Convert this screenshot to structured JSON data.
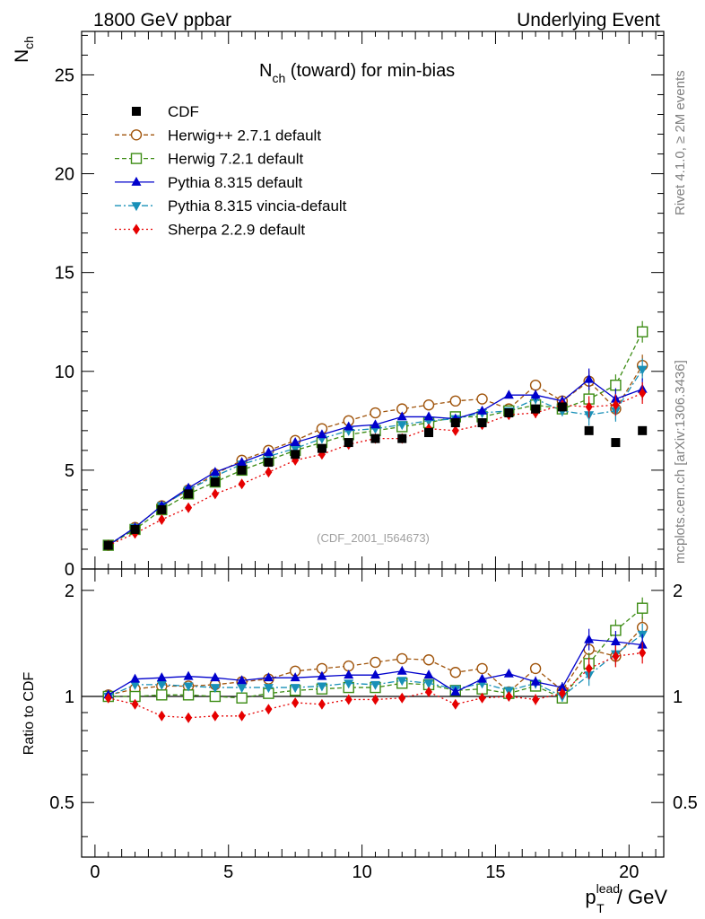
{
  "header": {
    "left": "1800 GeV ppbar",
    "right": "Underlying Event"
  },
  "side": {
    "rivet": "Rivet 4.1.0, ≥ 2M events",
    "mcplots": "mcplots.cern.ch [arXiv:1306.3436]"
  },
  "colors": {
    "CDF": "#000000",
    "herwigpp": "#a0540b",
    "herwig7": "#3c8c14",
    "pythia": "#0000cc",
    "vincia": "#1890b8",
    "sherpa": "#e60000"
  },
  "chart_data": [
    {
      "type": "scatter",
      "title_main": "N",
      "title_sub": "ch",
      "title_rest": " (toward) for min-bias",
      "ylabel_main": "N",
      "ylabel_sub": "ch",
      "xlim": [
        -0.5,
        21.3
      ],
      "ylim": [
        0,
        27.2
      ],
      "yticks": [
        0,
        5,
        10,
        15,
        20,
        25
      ],
      "ytick_labels": [
        "0",
        "5",
        "10",
        "15",
        "20",
        "25"
      ],
      "watermark": "(CDF_2001_I564673)",
      "x": [
        0.5,
        1.5,
        2.5,
        3.5,
        4.5,
        5.5,
        6.5,
        7.5,
        8.5,
        9.5,
        10.5,
        11.5,
        12.5,
        13.5,
        14.5,
        15.5,
        16.5,
        17.5,
        18.5,
        19.5,
        20.5
      ],
      "series": [
        {
          "name": "CDF",
          "key": "CDF",
          "values": [
            1.2,
            2.0,
            3.0,
            3.8,
            4.4,
            5.0,
            5.4,
            5.8,
            6.1,
            6.4,
            6.6,
            6.6,
            6.9,
            7.4,
            7.4,
            7.9,
            8.1,
            8.2,
            7.0,
            6.4,
            7.0
          ]
        },
        {
          "name": "Herwig++ 2.7.1 default",
          "key": "herwigpp",
          "values": [
            1.2,
            2.1,
            3.2,
            4.0,
            4.8,
            5.5,
            6.0,
            6.5,
            7.1,
            7.5,
            7.9,
            8.1,
            8.3,
            8.5,
            8.6,
            8.1,
            9.3,
            8.5,
            9.5,
            8.1,
            10.3
          ]
        },
        {
          "name": "Herwig 7.2.1 default",
          "key": "herwig7",
          "values": [
            1.2,
            2.0,
            3.0,
            3.8,
            4.4,
            5.0,
            5.5,
            6.0,
            6.4,
            6.8,
            7.0,
            7.2,
            7.4,
            7.7,
            7.7,
            8.0,
            8.3,
            8.1,
            8.6,
            9.3,
            12.0
          ]
        },
        {
          "name": "Pythia 8.315 default",
          "key": "pythia",
          "values": [
            1.2,
            2.1,
            3.2,
            4.1,
            4.9,
            5.4,
            5.9,
            6.4,
            6.8,
            7.2,
            7.3,
            7.7,
            7.7,
            7.6,
            8.0,
            8.8,
            8.8,
            8.5,
            9.6,
            8.6,
            9.1
          ]
        },
        {
          "name": "Pythia 8.315 vincia-default",
          "key": "vincia",
          "values": [
            1.2,
            2.1,
            3.2,
            4.0,
            4.7,
            5.3,
            5.7,
            6.1,
            6.6,
            7.0,
            7.1,
            7.3,
            7.5,
            7.6,
            7.9,
            8.0,
            8.6,
            8.0,
            7.8,
            8.0,
            10.1
          ]
        },
        {
          "name": "Sherpa 2.2.9 default",
          "key": "sherpa",
          "values": [
            1.2,
            1.8,
            2.5,
            3.1,
            3.8,
            4.3,
            4.9,
            5.5,
            5.8,
            6.3,
            6.6,
            6.6,
            7.1,
            7.0,
            7.3,
            7.8,
            7.9,
            8.3,
            8.2,
            8.3,
            8.9
          ]
        }
      ],
      "legend_position": "top-left"
    },
    {
      "type": "scatter",
      "ylabel": "Ratio to CDF",
      "xlabel_main": "p",
      "xlabel_sub": "T",
      "xlabel_sup": "lead",
      "xlabel_rest": " / GeV",
      "xlim": [
        -0.5,
        21.3
      ],
      "ylim": [
        0.35,
        2.3
      ],
      "xticks": [
        0,
        5,
        10,
        15,
        20
      ],
      "xtick_labels": [
        "0",
        "5",
        "10",
        "15",
        "20"
      ],
      "yticks": [
        0.5,
        1,
        2
      ],
      "ytick_labels": [
        "0.5",
        "1",
        "2"
      ],
      "x": [
        0.5,
        1.5,
        2.5,
        3.5,
        4.5,
        5.5,
        6.5,
        7.5,
        8.5,
        9.5,
        10.5,
        11.5,
        12.5,
        13.5,
        14.5,
        15.5,
        16.5,
        17.5,
        18.5,
        19.5,
        20.5
      ],
      "series": [
        {
          "name": "Herwig++ 2.7.1 default",
          "key": "herwigpp",
          "values": [
            1.01,
            1.05,
            1.07,
            1.07,
            1.08,
            1.1,
            1.12,
            1.18,
            1.2,
            1.22,
            1.25,
            1.28,
            1.27,
            1.17,
            1.2,
            1.03,
            1.2,
            1.04,
            1.36,
            1.3,
            1.57
          ]
        },
        {
          "name": "Herwig 7.2.1 default",
          "key": "herwig7",
          "values": [
            1.0,
            1.0,
            1.01,
            1.01,
            1.0,
            0.99,
            1.02,
            1.04,
            1.05,
            1.06,
            1.06,
            1.09,
            1.08,
            1.04,
            1.05,
            1.02,
            1.07,
            0.99,
            1.24,
            1.54,
            1.78
          ]
        },
        {
          "name": "Pythia 8.315 default",
          "key": "pythia",
          "values": [
            1.01,
            1.12,
            1.13,
            1.14,
            1.13,
            1.11,
            1.13,
            1.13,
            1.14,
            1.15,
            1.15,
            1.18,
            1.15,
            1.03,
            1.12,
            1.16,
            1.1,
            1.06,
            1.45,
            1.43,
            1.4
          ]
        },
        {
          "name": "Pythia 8.315 vincia-default",
          "key": "vincia",
          "values": [
            1.0,
            1.08,
            1.08,
            1.07,
            1.06,
            1.06,
            1.06,
            1.06,
            1.07,
            1.09,
            1.08,
            1.11,
            1.09,
            1.05,
            1.09,
            1.04,
            1.09,
            1.0,
            1.15,
            1.32,
            1.5
          ]
        },
        {
          "name": "Sherpa 2.2.9 default",
          "key": "sherpa",
          "values": [
            0.99,
            0.95,
            0.88,
            0.87,
            0.88,
            0.88,
            0.92,
            0.96,
            0.95,
            0.98,
            0.98,
            0.99,
            1.03,
            0.95,
            0.99,
            1.0,
            0.98,
            1.02,
            1.2,
            1.3,
            1.33
          ]
        }
      ]
    }
  ]
}
